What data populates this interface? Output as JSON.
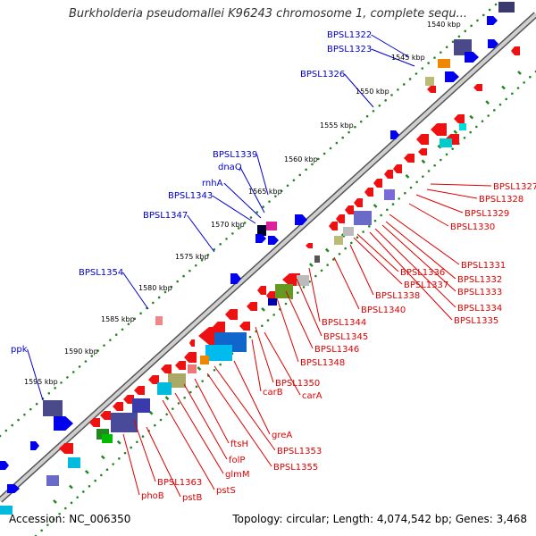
{
  "title": "Burkholderia pseudomallei K96243 chromosome 1, complete sequ...",
  "footer": {
    "accession": "Accession: NC_006350",
    "summary": "Topology: circular; Length: 4,074,542 bp; Genes: 3,468"
  },
  "colors": {
    "forward_label": "#0000cc",
    "reverse_label": "#dd0000",
    "backbone": "#999999",
    "tick_dots": "#228822",
    "forward_gene": "#0000ee",
    "reverse_gene": "#ee1111"
  },
  "scale": {
    "tick_labels": [
      "1540 kbp",
      "1545 kbp",
      "1550 kbp",
      "1555 kbp",
      "1560 kbp",
      "1565 kbp",
      "1570 kbp",
      "1575 kbp",
      "1580 kbp",
      "1585 kbp",
      "1590 kbp",
      "1595 kbp"
    ]
  },
  "forward_labels": [
    "BPSL1322",
    "BPSL1323",
    "BPSL1326",
    "BPSL1339",
    "dnaQ",
    "rnhA",
    "BPSL1343",
    "BPSL1347",
    "BPSL1354",
    "ppk"
  ],
  "reverse_labels": [
    "BPSL1327",
    "BPSL1328",
    "BPSL1329",
    "BPSL1330",
    "BPSL1331",
    "BPSL1332",
    "BPSL1333",
    "BPSL1334",
    "BPSL1335",
    "BPSL1336",
    "BPSL1337",
    "BPSL1338",
    "BPSL1340",
    "BPSL1344",
    "BPSL1345",
    "BPSL1346",
    "BPSL1348",
    "BPSL1350",
    "carA",
    "carB",
    "greA",
    "BPSL1353",
    "BPSL1355",
    "ftsH",
    "folP",
    "glmM",
    "pstS",
    "BPSL1363",
    "pstB",
    "phoB"
  ]
}
